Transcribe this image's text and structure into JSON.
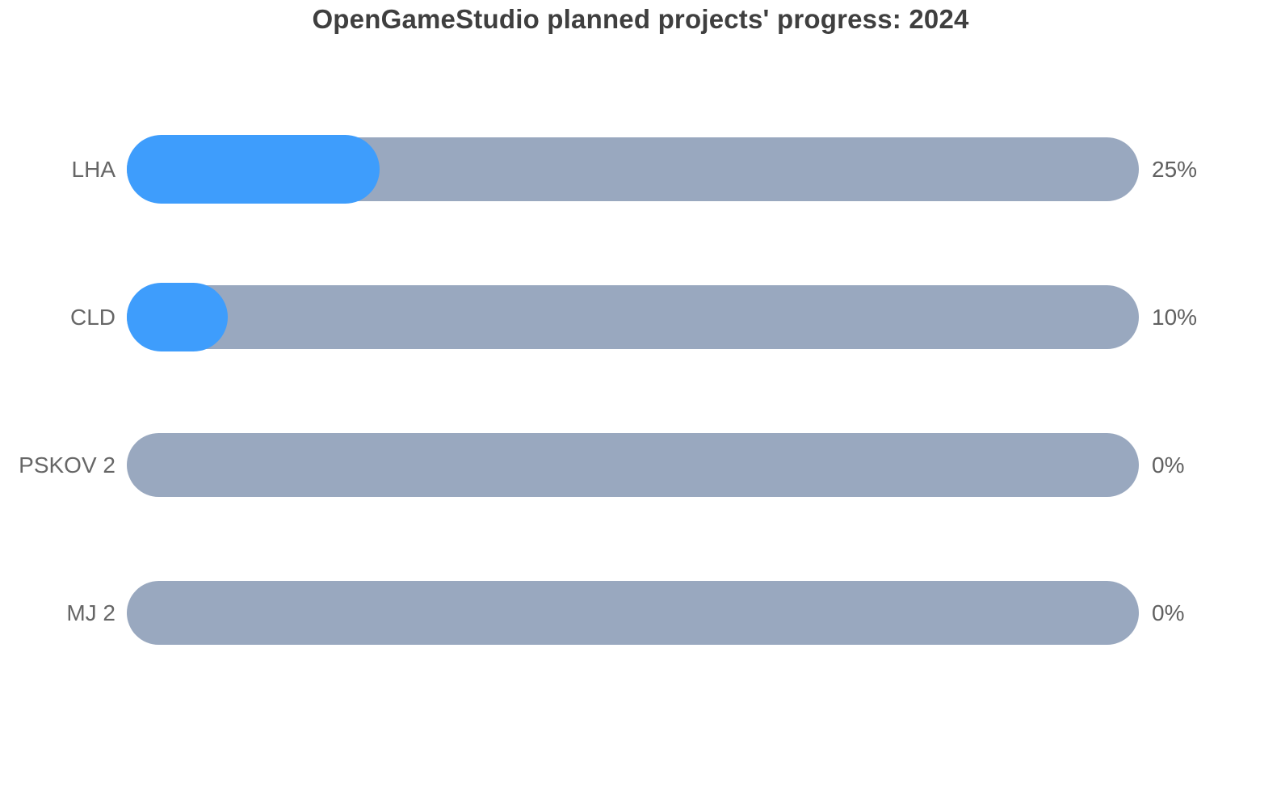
{
  "page": {
    "background": "#ffffff"
  },
  "colors": {
    "accent_blue": "#3e9dfc",
    "track_gray": "#99a8bf",
    "title_text": "#3f3f3f",
    "label_text": "#666666"
  },
  "chart_data": {
    "type": "bar",
    "orientation": "horizontal",
    "title": "OpenGameStudio planned projects' progress: 2024",
    "categories": [
      "LHA",
      "CLD",
      "PSKOV 2",
      "MJ 2"
    ],
    "values": [
      25,
      10,
      0,
      0
    ],
    "value_labels": [
      "25%",
      "10%",
      "0%",
      "0%"
    ],
    "xlim": [
      0,
      100
    ],
    "grid": false,
    "legend": false,
    "rows": [
      {
        "label": "LHA",
        "value": 25,
        "percent_label": "25%"
      },
      {
        "label": "CLD",
        "value": 10,
        "percent_label": "10%"
      },
      {
        "label": "PSKOV 2",
        "value": 0,
        "percent_label": "0%"
      },
      {
        "label": "MJ 2",
        "value": 0,
        "percent_label": "0%"
      }
    ]
  }
}
